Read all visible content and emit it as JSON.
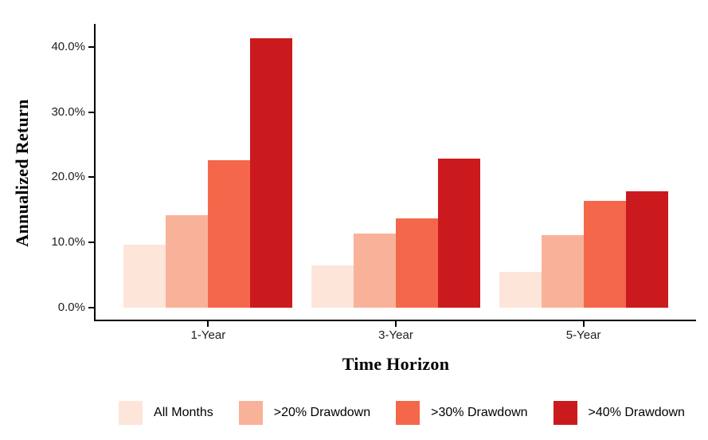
{
  "figure": {
    "background": "#ffffff",
    "axis_color": "#000000",
    "tick_label_color": "#212121"
  },
  "chart_data": {
    "type": "bar",
    "title": "",
    "xlabel": "Time Horizon",
    "ylabel": "Annualized Return",
    "categories": [
      "1-Year",
      "3-Year",
      "5-Year"
    ],
    "series": [
      {
        "name": "All Months",
        "color": "#fde5d9",
        "values": [
          9.6,
          6.5,
          5.5
        ]
      },
      {
        "name": ">20% Drawdown",
        "color": "#f9b29a",
        "values": [
          14.2,
          11.3,
          11.1
        ]
      },
      {
        "name": ">30% Drawdown",
        "color": "#f4674b",
        "values": [
          22.6,
          13.7,
          16.4
        ]
      },
      {
        "name": ">40% Drawdown",
        "color": "#cb1a1d",
        "values": [
          41.4,
          22.9,
          17.8
        ]
      }
    ],
    "ylim": [
      0,
      43.6
    ],
    "yticks": [
      {
        "value": 0,
        "label": "0.0%"
      },
      {
        "value": 10,
        "label": "10.0%"
      },
      {
        "value": 20,
        "label": "20.0%"
      },
      {
        "value": 30,
        "label": "30.0%"
      },
      {
        "value": 40,
        "label": "40.0%"
      }
    ],
    "legend_position": "bottom",
    "grid": false,
    "bar_group_width_fraction": 0.9
  }
}
